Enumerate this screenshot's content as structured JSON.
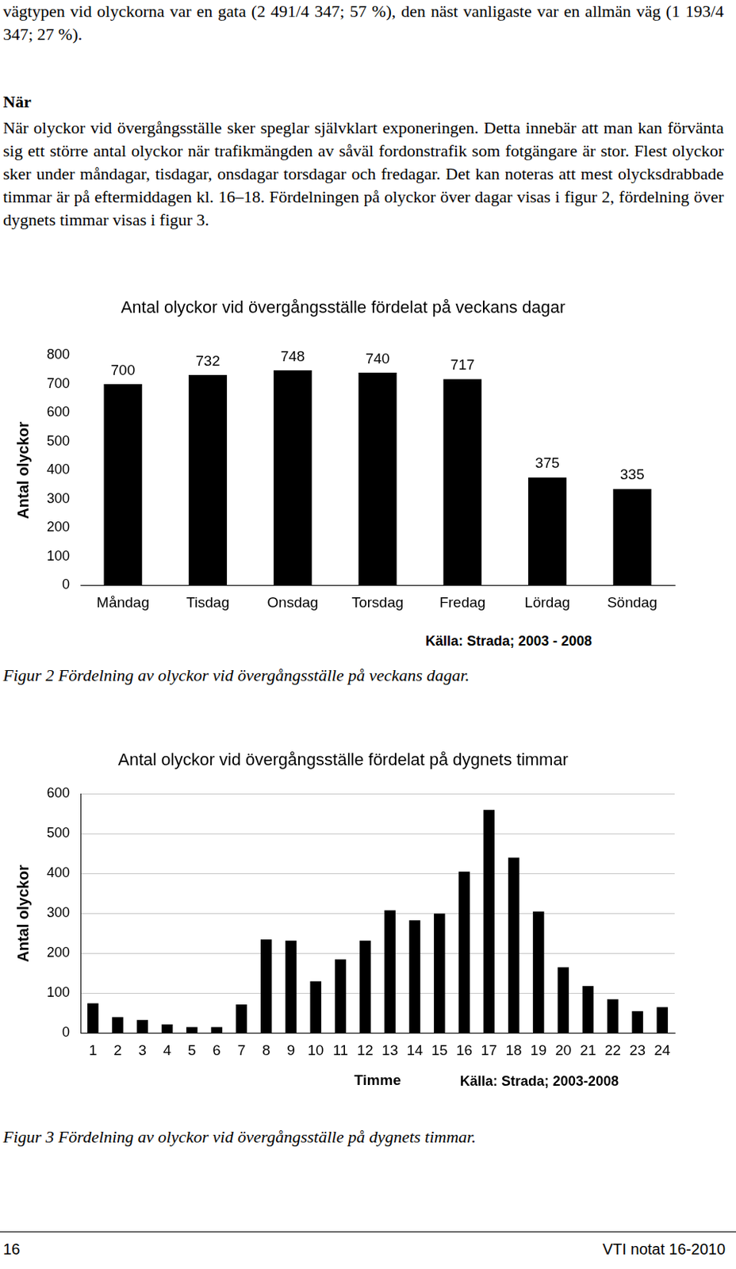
{
  "page": {
    "lead": "vägtypen vid olyckorna var en gata (2 491/4 347; 57 %), den näst vanligaste var en allmän väg (1 193/4 347; 27 %).",
    "heading": "När",
    "paragraph": "När olyckor vid övergångsställe sker speglar självklart exponeringen. Detta innebär att man kan förvänta sig ett större antal olyckor när trafikmängden av såväl fordonstrafik som fotgängare är stor. Flest olyckor sker under måndagar, tisdagar, onsdagar torsdagar och fredagar. Det kan noteras att mest olycksdrabbade timmar är på eftermiddagen kl. 16–18. Fördelningen på olyckor över dagar visas i figur 2, fördelning över dygnets timmar visas i figur 3."
  },
  "chart_data": [
    {
      "type": "bar",
      "title": "Antal olyckor vid övergångsställe fördelat på veckans dagar",
      "y_label": "Antal olyckor",
      "categories": [
        "Måndag",
        "Tisdag",
        "Onsdag",
        "Torsdag",
        "Fredag",
        "Lördag",
        "Söndag"
      ],
      "values": [
        700,
        732,
        748,
        740,
        717,
        375,
        335
      ],
      "color": "#000000",
      "ylim": [
        0,
        800
      ],
      "yticks": [
        0,
        100,
        200,
        300,
        400,
        500,
        600,
        700,
        800
      ],
      "grid": false,
      "data_labels": true,
      "source": "Källa: Strada; 2003 - 2008",
      "caption": "Figur 2  Fördelning av olyckor vid övergångsställe på veckans dagar."
    },
    {
      "type": "bar",
      "title": "Antal olyckor vid övergångsställe fördelat på dygnets timmar",
      "y_label": "Antal olyckor",
      "x_label": "Timme",
      "categories": [
        "1",
        "2",
        "3",
        "4",
        "5",
        "6",
        "7",
        "8",
        "9",
        "10",
        "11",
        "12",
        "13",
        "14",
        "15",
        "16",
        "17",
        "18",
        "19",
        "20",
        "21",
        "22",
        "23",
        "24"
      ],
      "values": [
        75,
        40,
        33,
        22,
        15,
        15,
        72,
        235,
        232,
        130,
        185,
        232,
        308,
        283,
        300,
        405,
        560,
        440,
        305,
        165,
        118,
        85,
        55,
        65
      ],
      "color": "#000000",
      "ylim": [
        0,
        600
      ],
      "yticks": [
        0,
        100,
        200,
        300,
        400,
        500,
        600
      ],
      "grid": true,
      "data_labels": false,
      "source": "Källa: Strada; 2003-2008",
      "caption": "Figur 3  Fördelning av olyckor vid övergångsställe på dygnets timmar."
    }
  ],
  "footer": {
    "page_number": "16",
    "report": "VTI notat 16-2010"
  }
}
